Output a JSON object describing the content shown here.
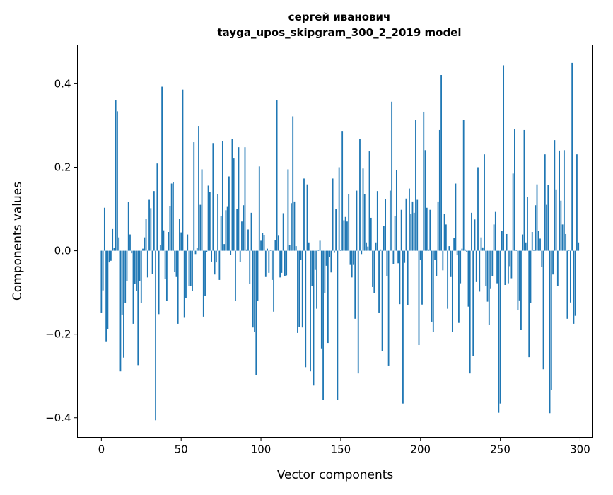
{
  "chart_data": {
    "type": "bar",
    "title": "сергей иванович",
    "subtitle": "tayga_upos_skipgram_300_2_2019 model",
    "xlabel": "Vector components",
    "ylabel": "Components values",
    "xlim": [
      -15,
      308
    ],
    "ylim": [
      -0.447,
      0.493
    ],
    "xticks": [
      0,
      50,
      100,
      150,
      200,
      250,
      300
    ],
    "xtick_labels": [
      "0",
      "50",
      "100",
      "150",
      "200",
      "250",
      "300"
    ],
    "yticks": [
      -0.4,
      -0.2,
      0.0,
      0.2,
      0.4
    ],
    "ytick_labels": [
      "−0.4",
      "−0.2",
      "0.0",
      "0.2",
      "0.4"
    ],
    "grid": false,
    "bar_color": "#1f77b4",
    "values": [
      -0.148,
      -0.095,
      0.103,
      -0.217,
      -0.187,
      -0.028,
      -0.024,
      0.052,
      0.007,
      0.36,
      0.334,
      0.032,
      -0.289,
      -0.153,
      -0.256,
      -0.126,
      -0.072,
      0.117,
      0.039,
      -0.006,
      -0.175,
      -0.079,
      -0.097,
      -0.274,
      -0.072,
      -0.126,
      0.005,
      0.032,
      0.076,
      -0.064,
      0.122,
      0.102,
      -0.055,
      0.143,
      -0.406,
      0.209,
      -0.152,
      0.013,
      0.393,
      0.049,
      -0.068,
      -0.12,
      0.045,
      0.107,
      0.161,
      0.164,
      -0.051,
      -0.063,
      -0.175,
      0.076,
      0.044,
      0.386,
      -0.159,
      -0.114,
      0.039,
      -0.085,
      -0.085,
      -0.097,
      0.26,
      -0.008,
      0.006,
      0.299,
      0.11,
      0.195,
      -0.158,
      -0.109,
      -0.004,
      0.156,
      0.141,
      -0.026,
      0.258,
      -0.057,
      -0.028,
      0.136,
      -0.07,
      0.084,
      0.263,
      0.016,
      0.097,
      0.105,
      0.178,
      -0.01,
      0.267,
      0.221,
      -0.12,
      0.1,
      0.248,
      -0.027,
      0.07,
      0.109,
      0.248,
      0.003,
      0.051,
      -0.08,
      0.091,
      -0.184,
      -0.194,
      -0.298,
      -0.121,
      0.202,
      0.024,
      0.042,
      0.037,
      -0.063,
      0.005,
      -0.053,
      0.002,
      -0.07,
      -0.146,
      0.025,
      0.36,
      0.036,
      -0.064,
      -0.053,
      0.09,
      -0.061,
      -0.059,
      0.195,
      0.013,
      0.114,
      0.322,
      0.118,
      0.011,
      -0.197,
      -0.182,
      -0.022,
      -0.184,
      0.173,
      -0.279,
      0.159,
      0.02,
      -0.289,
      -0.085,
      -0.323,
      -0.046,
      -0.139,
      0.002,
      0.024,
      -0.234,
      -0.357,
      -0.102,
      -0.036,
      -0.221,
      -0.015,
      -0.052,
      0.173,
      -0.005,
      0.1,
      -0.357,
      0.2,
      0.002,
      0.287,
      0.073,
      0.081,
      0.07,
      0.136,
      -0.034,
      -0.064,
      -0.034,
      -0.163,
      0.144,
      -0.294,
      0.267,
      -0.008,
      0.197,
      0.136,
      0.02,
      0.01,
      0.238,
      0.079,
      -0.087,
      -0.102,
      0.02,
      0.143,
      -0.148,
      0.003,
      -0.241,
      0.059,
      0.124,
      -0.061,
      -0.275,
      0.144,
      0.357,
      -0.032,
      0.084,
      0.194,
      -0.03,
      -0.128,
      0.098,
      -0.366,
      -0.029,
      0.125,
      -0.13,
      0.149,
      0.088,
      0.118,
      0.091,
      0.313,
      0.122,
      -0.226,
      -0.022,
      -0.129,
      0.333,
      0.241,
      0.103,
      0.003,
      0.098,
      -0.17,
      -0.195,
      -0.022,
      -0.061,
      0.118,
      0.289,
      0.421,
      -0.047,
      0.088,
      0.063,
      -0.139,
      0.011,
      -0.063,
      -0.195,
      0.03,
      0.161,
      -0.011,
      -0.173,
      -0.078,
      0.005,
      0.314,
      0.003,
      -0.003,
      -0.134,
      -0.294,
      0.091,
      -0.253,
      0.075,
      -0.075,
      0.2,
      -0.098,
      0.032,
      0.008,
      0.231,
      -0.085,
      -0.122,
      -0.178,
      -0.09,
      -0.061,
      0.063,
      0.093,
      -0.078,
      -0.388,
      -0.366,
      0.047,
      0.444,
      -0.082,
      0.04,
      -0.078,
      -0.037,
      -0.066,
      0.185,
      0.292,
      0.001,
      -0.143,
      -0.119,
      -0.19,
      0.039,
      0.289,
      0.02,
      0.129,
      -0.255,
      -0.126,
      0.045,
      0.001,
      0.109,
      0.159,
      0.047,
      0.029,
      -0.039,
      -0.284,
      0.231,
      0.11,
      0.158,
      -0.389,
      -0.333,
      -0.057,
      0.265,
      0.147,
      -0.085,
      0.24,
      0.12,
      0.063,
      0.241,
      0.04,
      -0.163,
      0.001,
      -0.124,
      0.45,
      -0.175,
      -0.156,
      0.231,
      0.02
    ]
  }
}
